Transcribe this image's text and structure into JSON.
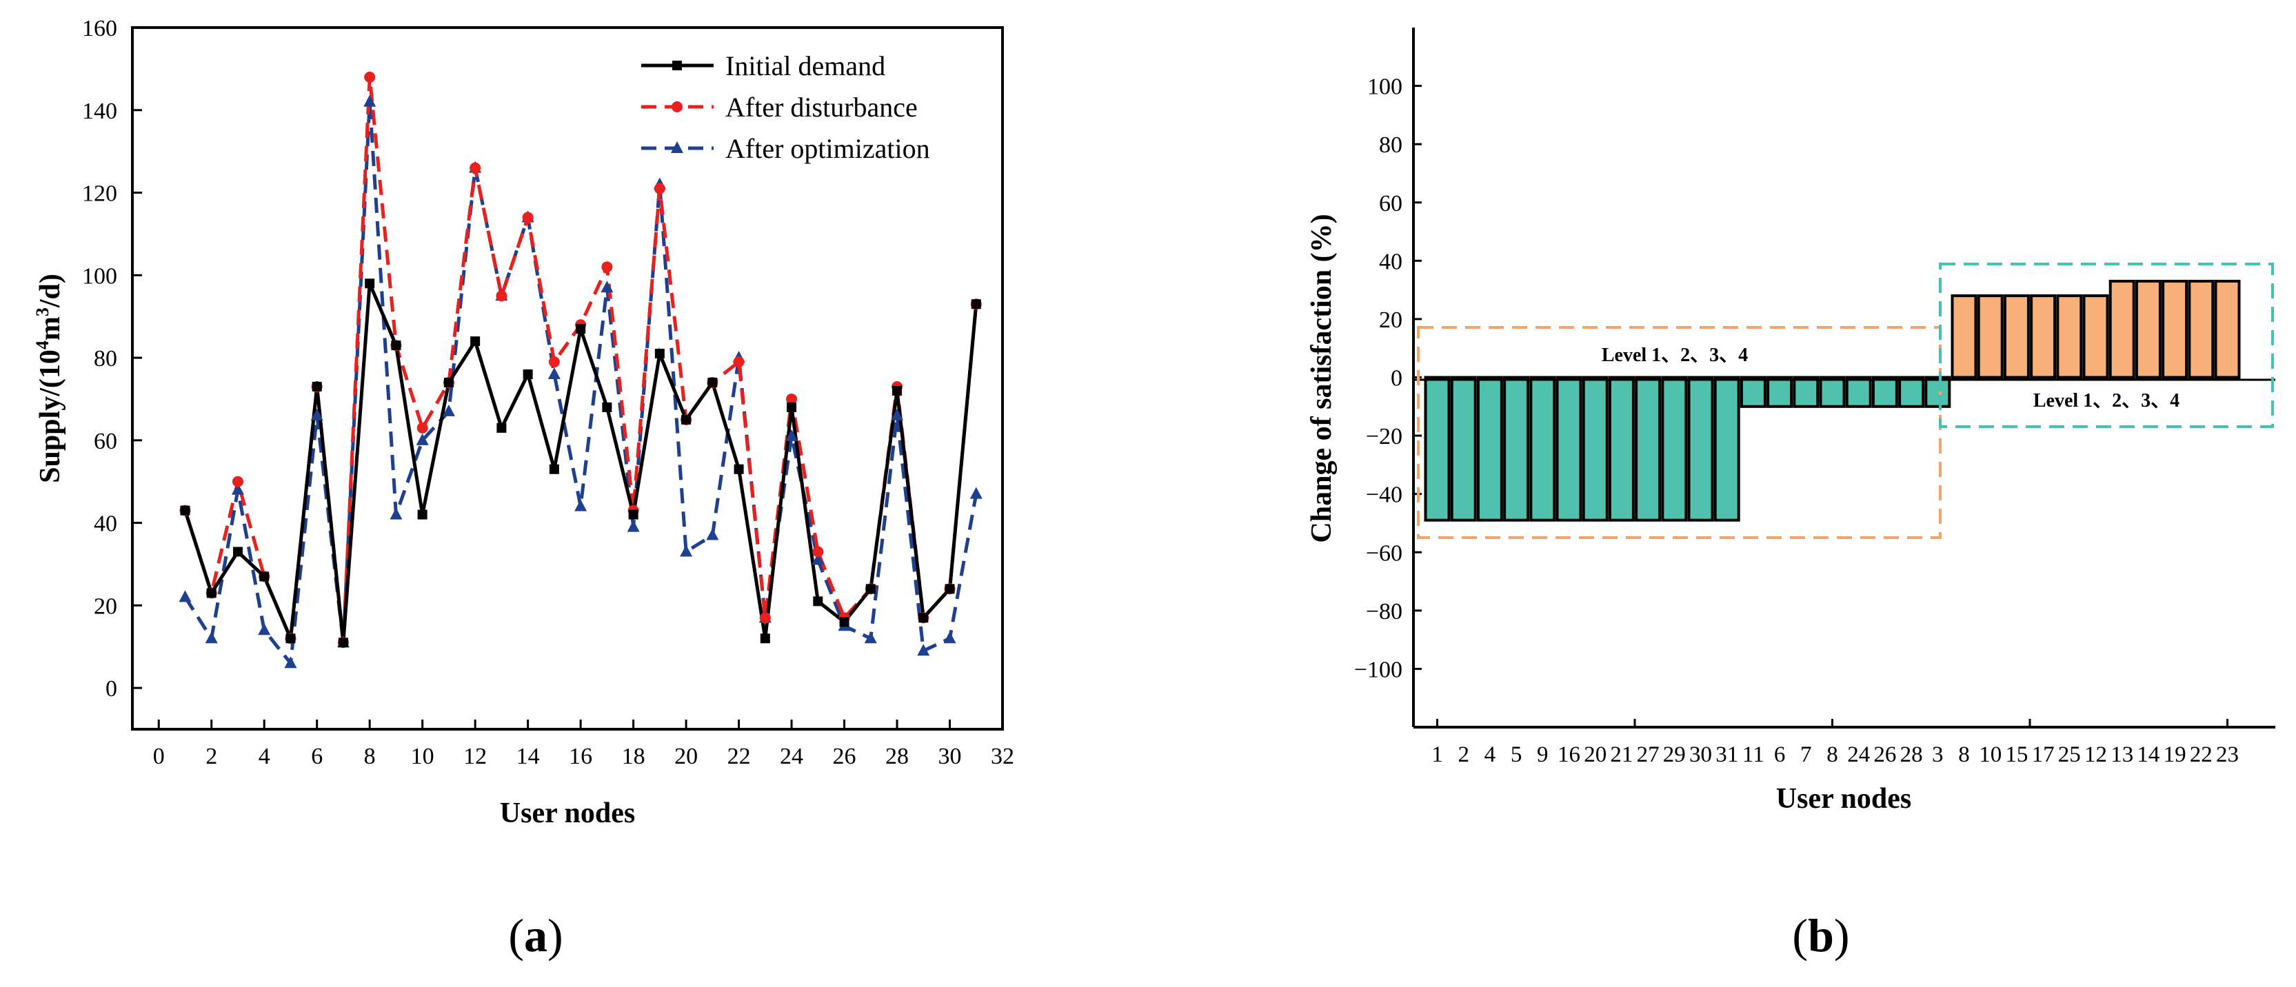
{
  "chart_data": [
    {
      "type": "line",
      "panel_label": "a",
      "xlabel": "User nodes",
      "ylabel_prefix": "Supply/(10",
      "ylabel_sup1": "4",
      "ylabel_mid": "m",
      "ylabel_sup2": "3",
      "ylabel_suffix": "/d)",
      "xlim": [
        -1,
        32
      ],
      "ylim": [
        -10,
        160
      ],
      "xticks": [
        0,
        2,
        4,
        6,
        8,
        10,
        12,
        14,
        16,
        18,
        20,
        22,
        24,
        26,
        28,
        30,
        32
      ],
      "yticks": [
        0,
        20,
        40,
        60,
        80,
        100,
        120,
        140,
        160
      ],
      "legend_position": "top-right",
      "x": [
        1,
        2,
        3,
        4,
        5,
        6,
        7,
        8,
        9,
        10,
        11,
        12,
        13,
        14,
        15,
        16,
        17,
        18,
        19,
        20,
        21,
        22,
        23,
        24,
        25,
        26,
        27,
        28,
        29,
        30,
        31
      ],
      "series": [
        {
          "name": "Initial demand",
          "color": "#000000",
          "dashed": false,
          "marker": "square",
          "values": [
            43,
            23,
            33,
            27,
            12,
            73,
            11,
            98,
            83,
            42,
            74,
            84,
            63,
            76,
            53,
            87,
            68,
            42,
            81,
            65,
            74,
            53,
            12,
            68,
            21,
            16,
            24,
            72,
            17,
            24,
            93
          ]
        },
        {
          "name": "After disturbance",
          "color": "#e8201e",
          "dashed": true,
          "marker": "circle",
          "values": [
            43,
            23,
            50,
            27,
            12,
            73,
            11,
            148,
            83,
            63,
            74,
            126,
            95,
            114,
            79,
            88,
            102,
            43,
            121,
            65,
            74,
            79,
            17,
            70,
            33,
            17,
            24,
            73,
            17,
            24,
            93
          ]
        },
        {
          "name": "After optimization",
          "color": "#1f3f8f",
          "dashed": true,
          "marker": "triangle",
          "values": [
            22,
            12,
            48,
            14,
            6,
            66,
            11,
            142,
            42,
            60,
            67,
            126,
            95,
            114,
            76,
            44,
            97,
            39,
            122,
            33,
            37,
            80,
            17,
            61,
            31,
            15,
            12,
            66,
            9,
            12,
            47
          ]
        }
      ]
    },
    {
      "type": "bar",
      "panel_label": "b",
      "xlabel": "User nodes",
      "ylabel": "Change of satisfaction (%)",
      "ylim": [
        -120,
        120
      ],
      "yticks": [
        -100,
        -80,
        -60,
        -40,
        -20,
        0,
        20,
        40,
        60,
        80,
        100
      ],
      "categories": [
        "1",
        "2",
        "4",
        "5",
        "9",
        "16",
        "20",
        "21",
        "27",
        "29",
        "30",
        "31",
        "11",
        "6",
        "7",
        "8",
        "24",
        "26",
        "28",
        "3",
        "8",
        "10",
        "15",
        "17",
        "25",
        "12",
        "13",
        "14",
        "19",
        "22",
        "23"
      ],
      "values": [
        -49,
        -49,
        -49,
        -49,
        -49,
        -49,
        -49,
        -49,
        -49,
        -49,
        -49,
        -49,
        -10,
        -10,
        -10,
        -10,
        -10,
        -10,
        -10,
        -10,
        28,
        28,
        28,
        28,
        28,
        28,
        33,
        33,
        33,
        33,
        33
      ],
      "colors": {
        "negative": "#4fc1ad",
        "positive": "#f7b07a",
        "orange_box": "#f4a46a",
        "teal_box": "#47c0b6"
      },
      "annotations": [
        "Level 1、2、3、4",
        "Level 1、2、3、4"
      ]
    }
  ]
}
